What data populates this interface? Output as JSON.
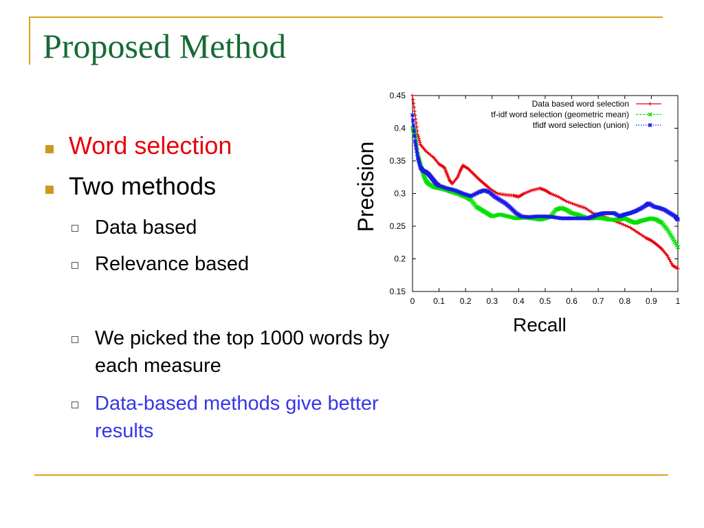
{
  "slide": {
    "title": "Proposed Method",
    "bullets": [
      {
        "text": "Word selection",
        "level": 1,
        "color": "#e8000b"
      },
      {
        "text": "Two methods",
        "level": 1
      },
      {
        "text": "Data based",
        "level": 2
      },
      {
        "text": "Relevance based",
        "level": 2
      },
      {
        "text": "We picked the top 1000 words by each measure",
        "level": 2
      },
      {
        "text": "Data-based methods give better results",
        "level": 2,
        "color": "#3636e6"
      }
    ],
    "colors": {
      "title": "#166b35",
      "accent_rule": "#d9a21b",
      "bullet": "#c99a1e"
    }
  },
  "chart_data": {
    "type": "line",
    "title": "",
    "xlabel": "Recall",
    "ylabel": "Precision",
    "xlim": [
      0,
      1
    ],
    "ylim": [
      0.15,
      0.45
    ],
    "x_ticks": [
      "0",
      "0.1",
      "0.2",
      "0.3",
      "0.4",
      "0.5",
      "0.6",
      "0.7",
      "0.8",
      "0.9",
      "1"
    ],
    "y_ticks": [
      "0.45",
      "0.4",
      "0.35",
      "0.3",
      "0.25",
      "0.2",
      "0.15"
    ],
    "legend_position": "top-right",
    "grid": false,
    "series": [
      {
        "name": "Data based word selection",
        "color": "#e8000b",
        "marker": "+",
        "points": [
          [
            0.0,
            0.45
          ],
          [
            0.01,
            0.42
          ],
          [
            0.02,
            0.39
          ],
          [
            0.03,
            0.375
          ],
          [
            0.05,
            0.365
          ],
          [
            0.08,
            0.355
          ],
          [
            0.1,
            0.345
          ],
          [
            0.12,
            0.34
          ],
          [
            0.13,
            0.33
          ],
          [
            0.14,
            0.32
          ],
          [
            0.15,
            0.315
          ],
          [
            0.17,
            0.325
          ],
          [
            0.18,
            0.335
          ],
          [
            0.19,
            0.343
          ],
          [
            0.21,
            0.338
          ],
          [
            0.23,
            0.33
          ],
          [
            0.25,
            0.322
          ],
          [
            0.27,
            0.315
          ],
          [
            0.29,
            0.308
          ],
          [
            0.32,
            0.3
          ],
          [
            0.35,
            0.298
          ],
          [
            0.38,
            0.297
          ],
          [
            0.4,
            0.295
          ],
          [
            0.42,
            0.3
          ],
          [
            0.45,
            0.305
          ],
          [
            0.48,
            0.308
          ],
          [
            0.5,
            0.305
          ],
          [
            0.52,
            0.3
          ],
          [
            0.55,
            0.295
          ],
          [
            0.58,
            0.288
          ],
          [
            0.62,
            0.282
          ],
          [
            0.65,
            0.278
          ],
          [
            0.68,
            0.27
          ],
          [
            0.72,
            0.265
          ],
          [
            0.75,
            0.26
          ],
          [
            0.78,
            0.255
          ],
          [
            0.82,
            0.248
          ],
          [
            0.85,
            0.24
          ],
          [
            0.88,
            0.232
          ],
          [
            0.9,
            0.228
          ],
          [
            0.92,
            0.222
          ],
          [
            0.94,
            0.215
          ],
          [
            0.96,
            0.205
          ],
          [
            0.98,
            0.19
          ],
          [
            1.0,
            0.185
          ]
        ]
      },
      {
        "name": "tf-idf word selection (geometric mean)",
        "color": "#00e000",
        "marker": "x",
        "points": [
          [
            0.0,
            0.4
          ],
          [
            0.01,
            0.39
          ],
          [
            0.02,
            0.36
          ],
          [
            0.03,
            0.345
          ],
          [
            0.04,
            0.33
          ],
          [
            0.05,
            0.32
          ],
          [
            0.06,
            0.315
          ],
          [
            0.08,
            0.31
          ],
          [
            0.1,
            0.308
          ],
          [
            0.13,
            0.305
          ],
          [
            0.15,
            0.302
          ],
          [
            0.18,
            0.298
          ],
          [
            0.2,
            0.295
          ],
          [
            0.22,
            0.29
          ],
          [
            0.24,
            0.28
          ],
          [
            0.26,
            0.275
          ],
          [
            0.28,
            0.27
          ],
          [
            0.3,
            0.265
          ],
          [
            0.33,
            0.268
          ],
          [
            0.36,
            0.265
          ],
          [
            0.39,
            0.262
          ],
          [
            0.42,
            0.263
          ],
          [
            0.45,
            0.262
          ],
          [
            0.48,
            0.26
          ],
          [
            0.5,
            0.262
          ],
          [
            0.52,
            0.265
          ],
          [
            0.54,
            0.275
          ],
          [
            0.56,
            0.278
          ],
          [
            0.58,
            0.275
          ],
          [
            0.6,
            0.27
          ],
          [
            0.62,
            0.268
          ],
          [
            0.64,
            0.265
          ],
          [
            0.66,
            0.262
          ],
          [
            0.68,
            0.262
          ],
          [
            0.7,
            0.263
          ],
          [
            0.72,
            0.262
          ],
          [
            0.74,
            0.26
          ],
          [
            0.76,
            0.26
          ],
          [
            0.78,
            0.26
          ],
          [
            0.8,
            0.262
          ],
          [
            0.82,
            0.258
          ],
          [
            0.84,
            0.255
          ],
          [
            0.86,
            0.258
          ],
          [
            0.88,
            0.26
          ],
          [
            0.9,
            0.262
          ],
          [
            0.92,
            0.26
          ],
          [
            0.94,
            0.255
          ],
          [
            0.96,
            0.245
          ],
          [
            0.98,
            0.232
          ],
          [
            1.0,
            0.218
          ]
        ]
      },
      {
        "name": "tfidf word selection (union)",
        "color": "#1a1ae6",
        "marker": "*",
        "points": [
          [
            0.0,
            0.42
          ],
          [
            0.01,
            0.38
          ],
          [
            0.02,
            0.355
          ],
          [
            0.03,
            0.34
          ],
          [
            0.04,
            0.335
          ],
          [
            0.05,
            0.333
          ],
          [
            0.06,
            0.33
          ],
          [
            0.07,
            0.325
          ],
          [
            0.08,
            0.32
          ],
          [
            0.09,
            0.315
          ],
          [
            0.1,
            0.312
          ],
          [
            0.13,
            0.308
          ],
          [
            0.16,
            0.305
          ],
          [
            0.19,
            0.3
          ],
          [
            0.22,
            0.296
          ],
          [
            0.25,
            0.302
          ],
          [
            0.27,
            0.305
          ],
          [
            0.29,
            0.302
          ],
          [
            0.31,
            0.295
          ],
          [
            0.33,
            0.29
          ],
          [
            0.35,
            0.285
          ],
          [
            0.37,
            0.278
          ],
          [
            0.39,
            0.27
          ],
          [
            0.41,
            0.265
          ],
          [
            0.44,
            0.264
          ],
          [
            0.47,
            0.265
          ],
          [
            0.5,
            0.265
          ],
          [
            0.53,
            0.264
          ],
          [
            0.56,
            0.262
          ],
          [
            0.6,
            0.262
          ],
          [
            0.63,
            0.262
          ],
          [
            0.66,
            0.262
          ],
          [
            0.68,
            0.265
          ],
          [
            0.7,
            0.268
          ],
          [
            0.72,
            0.27
          ],
          [
            0.74,
            0.27
          ],
          [
            0.76,
            0.27
          ],
          [
            0.78,
            0.265
          ],
          [
            0.8,
            0.268
          ],
          [
            0.82,
            0.27
          ],
          [
            0.84,
            0.273
          ],
          [
            0.86,
            0.277
          ],
          [
            0.88,
            0.282
          ],
          [
            0.89,
            0.285
          ],
          [
            0.91,
            0.28
          ],
          [
            0.93,
            0.278
          ],
          [
            0.95,
            0.275
          ],
          [
            0.97,
            0.27
          ],
          [
            0.99,
            0.265
          ],
          [
            1.0,
            0.26
          ]
        ]
      }
    ]
  }
}
